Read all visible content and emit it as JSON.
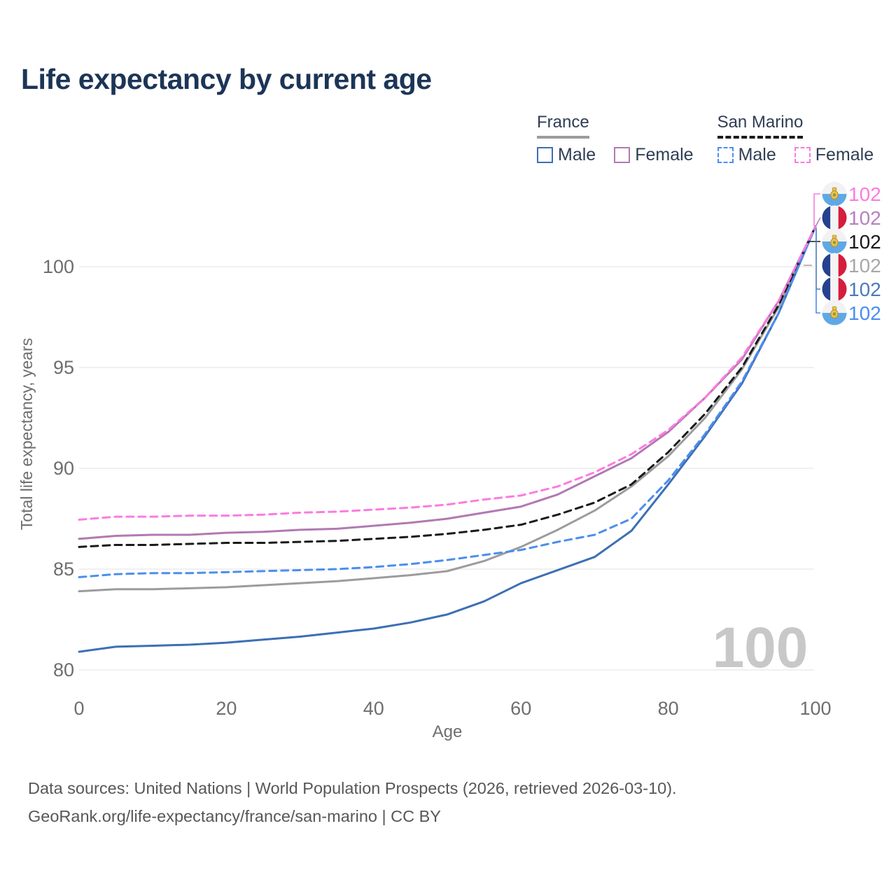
{
  "title": "Life expectancy by current age",
  "watermark": "100",
  "colors": {
    "title_text": "#1c3557",
    "legend_text": "#2f3e53",
    "axis_text": "#6e6e6e",
    "grid": "#ececec",
    "watermark": "#c8c8c8",
    "footer_text": "#575757"
  },
  "legend": {
    "groups": [
      {
        "label": "France",
        "line_style": "solid",
        "underline_color": "#9c9c9c",
        "items": [
          {
            "label": "Male",
            "color": "#3d6fb5"
          },
          {
            "label": "Female",
            "color": "#b279b2"
          }
        ]
      },
      {
        "label": "San Marino",
        "line_style": "dashed",
        "underline_color": "#1a1a1a",
        "items": [
          {
            "label": "Male",
            "color": "#4b8ef0"
          },
          {
            "label": "Female",
            "color": "#fc7be0"
          }
        ]
      }
    ]
  },
  "footer": {
    "line1": "Data sources: United Nations | World Population Prospects (2026, retrieved 2026-03-10).",
    "line2": "GeoRank.org/life-expectancy/france/san-marino | CC BY"
  },
  "chart_data": {
    "type": "line",
    "title": "Life expectancy by current age",
    "xlabel": "Age",
    "ylabel": "Total life expectancy, years",
    "xlim": [
      0,
      100
    ],
    "ylim": [
      80,
      102
    ],
    "xticks": [
      0,
      20,
      40,
      60,
      80,
      100
    ],
    "yticks": [
      80,
      85,
      90,
      95,
      100
    ],
    "grid": true,
    "legend_position": "top-right",
    "x": [
      0,
      5,
      10,
      15,
      20,
      25,
      30,
      35,
      40,
      45,
      50,
      55,
      60,
      65,
      70,
      75,
      80,
      85,
      90,
      95,
      100
    ],
    "series": [
      {
        "name": "France",
        "country": "France",
        "sex": "Both",
        "color": "#9c9c9c",
        "dashed": false,
        "values": [
          83.9,
          84.0,
          84.0,
          84.05,
          84.1,
          84.2,
          84.3,
          84.4,
          84.55,
          84.7,
          84.9,
          85.4,
          86.1,
          86.95,
          87.9,
          89.1,
          90.6,
          92.5,
          94.9,
          98.0,
          102
        ]
      },
      {
        "name": "France Female",
        "country": "France",
        "sex": "Female",
        "color": "#b279b2",
        "dashed": false,
        "values": [
          86.5,
          86.65,
          86.7,
          86.7,
          86.8,
          86.85,
          86.95,
          87.0,
          87.15,
          87.3,
          87.5,
          87.8,
          88.1,
          88.7,
          89.6,
          90.5,
          91.8,
          93.5,
          95.4,
          98.3,
          102
        ]
      },
      {
        "name": "France Male",
        "country": "France",
        "sex": "Male",
        "color": "#3d6fb5",
        "dashed": false,
        "values": [
          80.9,
          81.15,
          81.2,
          81.25,
          81.35,
          81.5,
          81.65,
          81.85,
          82.05,
          82.35,
          82.75,
          83.4,
          84.3,
          84.95,
          85.6,
          86.9,
          89.2,
          91.6,
          94.2,
          97.7,
          102
        ]
      },
      {
        "name": "San Marino",
        "country": "San Marino",
        "sex": "Both",
        "color": "#1a1a1a",
        "dashed": true,
        "values": [
          86.1,
          86.2,
          86.2,
          86.25,
          86.3,
          86.3,
          86.35,
          86.4,
          86.5,
          86.6,
          86.75,
          86.95,
          87.2,
          87.7,
          88.3,
          89.2,
          90.8,
          92.7,
          95.0,
          98.1,
          102
        ]
      },
      {
        "name": "San Marino Male",
        "country": "San Marino",
        "sex": "Male",
        "color": "#4b8ef0",
        "dashed": true,
        "values": [
          84.6,
          84.75,
          84.8,
          84.8,
          84.85,
          84.9,
          84.95,
          85.0,
          85.1,
          85.25,
          85.45,
          85.7,
          85.95,
          86.35,
          86.7,
          87.5,
          89.4,
          91.7,
          94.3,
          97.7,
          102
        ]
      },
      {
        "name": "San Marino Female",
        "country": "San Marino",
        "sex": "Female",
        "color": "#fc7be0",
        "dashed": true,
        "values": [
          87.45,
          87.6,
          87.6,
          87.65,
          87.65,
          87.7,
          87.8,
          87.85,
          87.95,
          88.05,
          88.2,
          88.45,
          88.65,
          89.1,
          89.8,
          90.7,
          91.9,
          93.5,
          95.5,
          98.3,
          102
        ]
      }
    ],
    "end_labels": [
      {
        "label": "102",
        "series": "San Marino Female",
        "flag": "san-marino",
        "color": "#fc7be0"
      },
      {
        "label": "102",
        "series": "France Female",
        "flag": "france",
        "color": "#b87fc0"
      },
      {
        "label": "102",
        "series": "San Marino",
        "flag": "san-marino",
        "color": "#1a1a1a"
      },
      {
        "label": "102",
        "series": "France",
        "flag": "france",
        "color": "#a8a8a8"
      },
      {
        "label": "102",
        "series": "France Male",
        "flag": "france",
        "color": "#4d79bd"
      },
      {
        "label": "102",
        "series": "San Marino Male",
        "flag": "san-marino",
        "color": "#4b8ef0"
      }
    ]
  }
}
